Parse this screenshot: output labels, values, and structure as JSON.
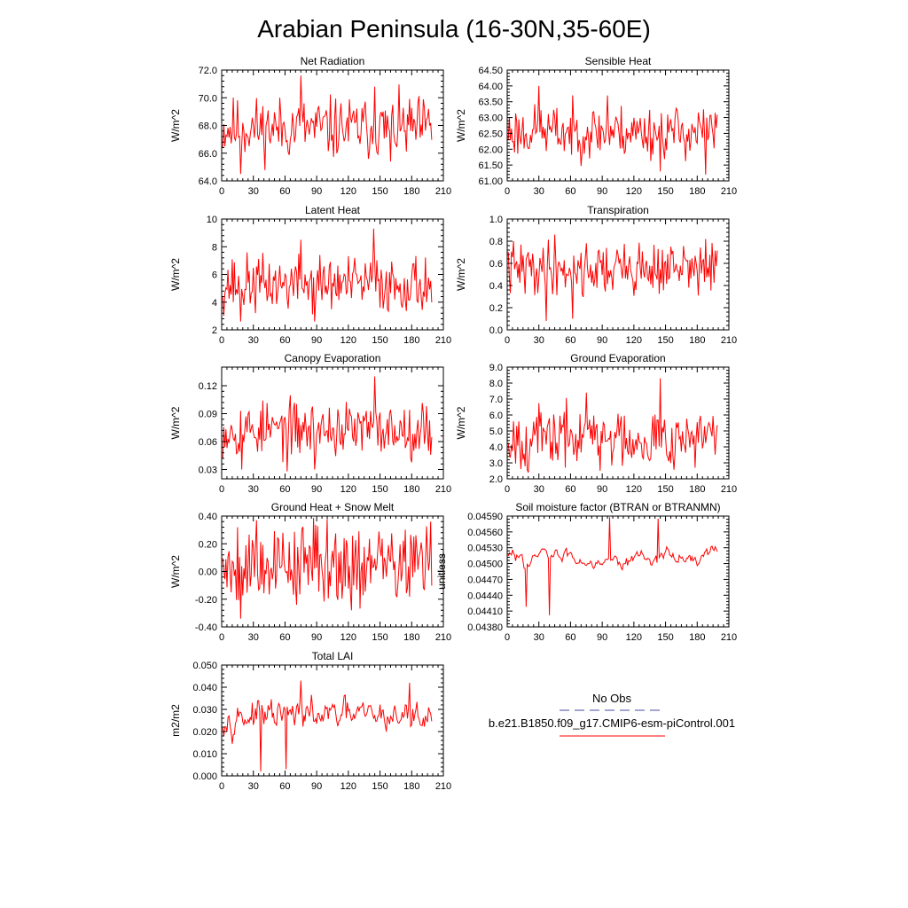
{
  "title": "Arabian Peninsula (16-30N,35-60E)",
  "colors": {
    "model": "#ff0000",
    "obs": "#4a4aa0",
    "axis": "#000000"
  },
  "legend": {
    "obs_label": "No Obs",
    "model_label": "b.e21.B1850.f09_g17.CMIP6-esm-piControl.001"
  },
  "chart_data": [
    {
      "type": "line",
      "title": "Net Radiation",
      "ylabel": "W/m^2",
      "xlim": [
        0,
        210
      ],
      "ylim": [
        64.0,
        72.0
      ],
      "xticks": [
        "0",
        "30",
        "60",
        "90",
        "120",
        "150",
        "180",
        "210"
      ],
      "yticks": [
        "64.0",
        "66.0",
        "68.0",
        "70.0",
        "72.0"
      ],
      "series": [
        {
          "x_start": 1,
          "x_step": 1,
          "mean": 67.8,
          "amp": 1.2,
          "seed": 11,
          "peaks": [
            [
              75,
              71.6
            ],
            [
              18,
              64.5
            ],
            [
              145,
              70.8
            ],
            [
              160,
              65.4
            ]
          ]
        }
      ]
    },
    {
      "type": "line",
      "title": "Sensible Heat",
      "ylabel": "W/m^2",
      "xlim": [
        0,
        210
      ],
      "ylim": [
        61.0,
        64.5
      ],
      "xticks": [
        "0",
        "30",
        "60",
        "90",
        "120",
        "150",
        "180",
        "210"
      ],
      "yticks": [
        "61.00",
        "61.50",
        "62.00",
        "62.50",
        "63.00",
        "63.50",
        "64.00",
        "64.50"
      ],
      "series": [
        {
          "x_start": 1,
          "x_step": 1,
          "mean": 62.55,
          "amp": 0.45,
          "seed": 23,
          "peaks": [
            [
              30,
              64.0
            ],
            [
              145,
              61.3
            ],
            [
              188,
              61.2
            ],
            [
              95,
              63.7
            ]
          ]
        }
      ]
    },
    {
      "type": "line",
      "title": "Latent Heat",
      "ylabel": "W/m^2",
      "xlim": [
        0,
        210
      ],
      "ylim": [
        2,
        10
      ],
      "xticks": [
        "0",
        "30",
        "60",
        "90",
        "120",
        "150",
        "180",
        "210"
      ],
      "yticks": [
        "2",
        "4",
        "6",
        "8",
        "10"
      ],
      "series": [
        {
          "x_start": 1,
          "x_step": 1,
          "mean": 5.3,
          "amp": 1.1,
          "seed": 37,
          "peaks": [
            [
              144,
              9.3
            ],
            [
              18,
              2.6
            ],
            [
              75,
              8.5
            ],
            [
              88,
              2.6
            ]
          ]
        }
      ]
    },
    {
      "type": "line",
      "title": "Transpiration",
      "ylabel": "W/m^2",
      "xlim": [
        0,
        210
      ],
      "ylim": [
        0.0,
        1.0
      ],
      "xticks": [
        "0",
        "30",
        "60",
        "90",
        "120",
        "150",
        "180",
        "210"
      ],
      "yticks": [
        "0.0",
        "0.2",
        "0.4",
        "0.6",
        "0.8",
        "1.0"
      ],
      "series": [
        {
          "x_start": 1,
          "x_step": 1,
          "mean": 0.55,
          "amp": 0.13,
          "seed": 41,
          "peaks": [
            [
              45,
              0.86
            ],
            [
              37,
              0.08
            ],
            [
              62,
              0.1
            ],
            [
              188,
              0.82
            ]
          ]
        }
      ]
    },
    {
      "type": "line",
      "title": "Canopy Evaporation",
      "ylabel": "W/m^2",
      "xlim": [
        0,
        210
      ],
      "ylim": [
        0.02,
        0.14
      ],
      "xticks": [
        "0",
        "30",
        "60",
        "90",
        "120",
        "150",
        "180",
        "210"
      ],
      "yticks": [
        "0.03",
        "0.06",
        "0.09",
        "0.12"
      ],
      "series": [
        {
          "x_start": 1,
          "x_step": 1,
          "mean": 0.073,
          "amp": 0.016,
          "seed": 53,
          "peaks": [
            [
              145,
              0.13
            ],
            [
              62,
              0.028
            ],
            [
              19,
              0.03
            ],
            [
              88,
              0.03
            ]
          ]
        }
      ]
    },
    {
      "type": "line",
      "title": "Ground Evaporation",
      "ylabel": "W/m^2",
      "xlim": [
        0,
        210
      ],
      "ylim": [
        2.0,
        9.0
      ],
      "xticks": [
        "0",
        "30",
        "60",
        "90",
        "120",
        "150",
        "180",
        "210"
      ],
      "yticks": [
        "2.0",
        "3.0",
        "4.0",
        "5.0",
        "6.0",
        "7.0",
        "8.0",
        "9.0"
      ],
      "series": [
        {
          "x_start": 1,
          "x_step": 1,
          "mean": 4.6,
          "amp": 1.0,
          "seed": 67,
          "peaks": [
            [
              145,
              8.3
            ],
            [
              20,
              2.4
            ],
            [
              88,
              2.5
            ],
            [
              75,
              7.4
            ]
          ]
        }
      ]
    },
    {
      "type": "line",
      "title": "Ground Heat + Snow Melt",
      "ylabel": "W/m^2",
      "xlim": [
        0,
        210
      ],
      "ylim": [
        -0.4,
        0.4
      ],
      "xticks": [
        "0",
        "30",
        "60",
        "90",
        "120",
        "150",
        "180",
        "210"
      ],
      "yticks": [
        "-0.40",
        "-0.20",
        "0.00",
        "0.20",
        "0.40"
      ],
      "series": [
        {
          "x_start": 1,
          "x_step": 1,
          "mean": 0.06,
          "amp": 0.16,
          "seed": 79,
          "peaks": [
            [
              18,
              -0.34
            ],
            [
              100,
              0.38
            ],
            [
              33,
              0.37
            ],
            [
              123,
              -0.28
            ]
          ]
        }
      ]
    },
    {
      "type": "line",
      "title": "Soil moisture factor (BTRAN or BTRANMN)",
      "ylabel": "unitless",
      "xlim": [
        0,
        210
      ],
      "ylim": [
        0.0438,
        0.0459
      ],
      "xticks": [
        "0",
        "30",
        "60",
        "90",
        "120",
        "150",
        "180",
        "210"
      ],
      "yticks": [
        "0.04380",
        "0.04410",
        "0.04440",
        "0.04470",
        "0.04500",
        "0.04530",
        "0.04560",
        "0.04590"
      ],
      "series": [
        {
          "x_start": 1,
          "x_step": 1,
          "mean": 0.04512,
          "amp": 0.00028,
          "seed": 83,
          "smooth": 0.8,
          "peaks": [
            [
              40,
              0.04402
            ],
            [
              97,
              0.04588
            ],
            [
              18,
              0.04418
            ],
            [
              143,
              0.04585
            ]
          ]
        }
      ]
    },
    {
      "type": "line",
      "title": "Total LAI",
      "ylabel": "m2/m2",
      "xlim": [
        0,
        210
      ],
      "ylim": [
        0.0,
        0.05
      ],
      "xticks": [
        "0",
        "30",
        "60",
        "90",
        "120",
        "150",
        "180",
        "210"
      ],
      "yticks": [
        "0.000",
        "0.010",
        "0.020",
        "0.030",
        "0.040",
        "0.050"
      ],
      "series": [
        {
          "x_start": 1,
          "x_step": 1,
          "mean": 0.027,
          "amp": 0.007,
          "seed": 97,
          "smooth": 0.55,
          "peaks": [
            [
              75,
              0.043
            ],
            [
              37,
              0.002
            ],
            [
              61,
              0.003
            ],
            [
              178,
              0.042
            ]
          ]
        }
      ]
    }
  ]
}
